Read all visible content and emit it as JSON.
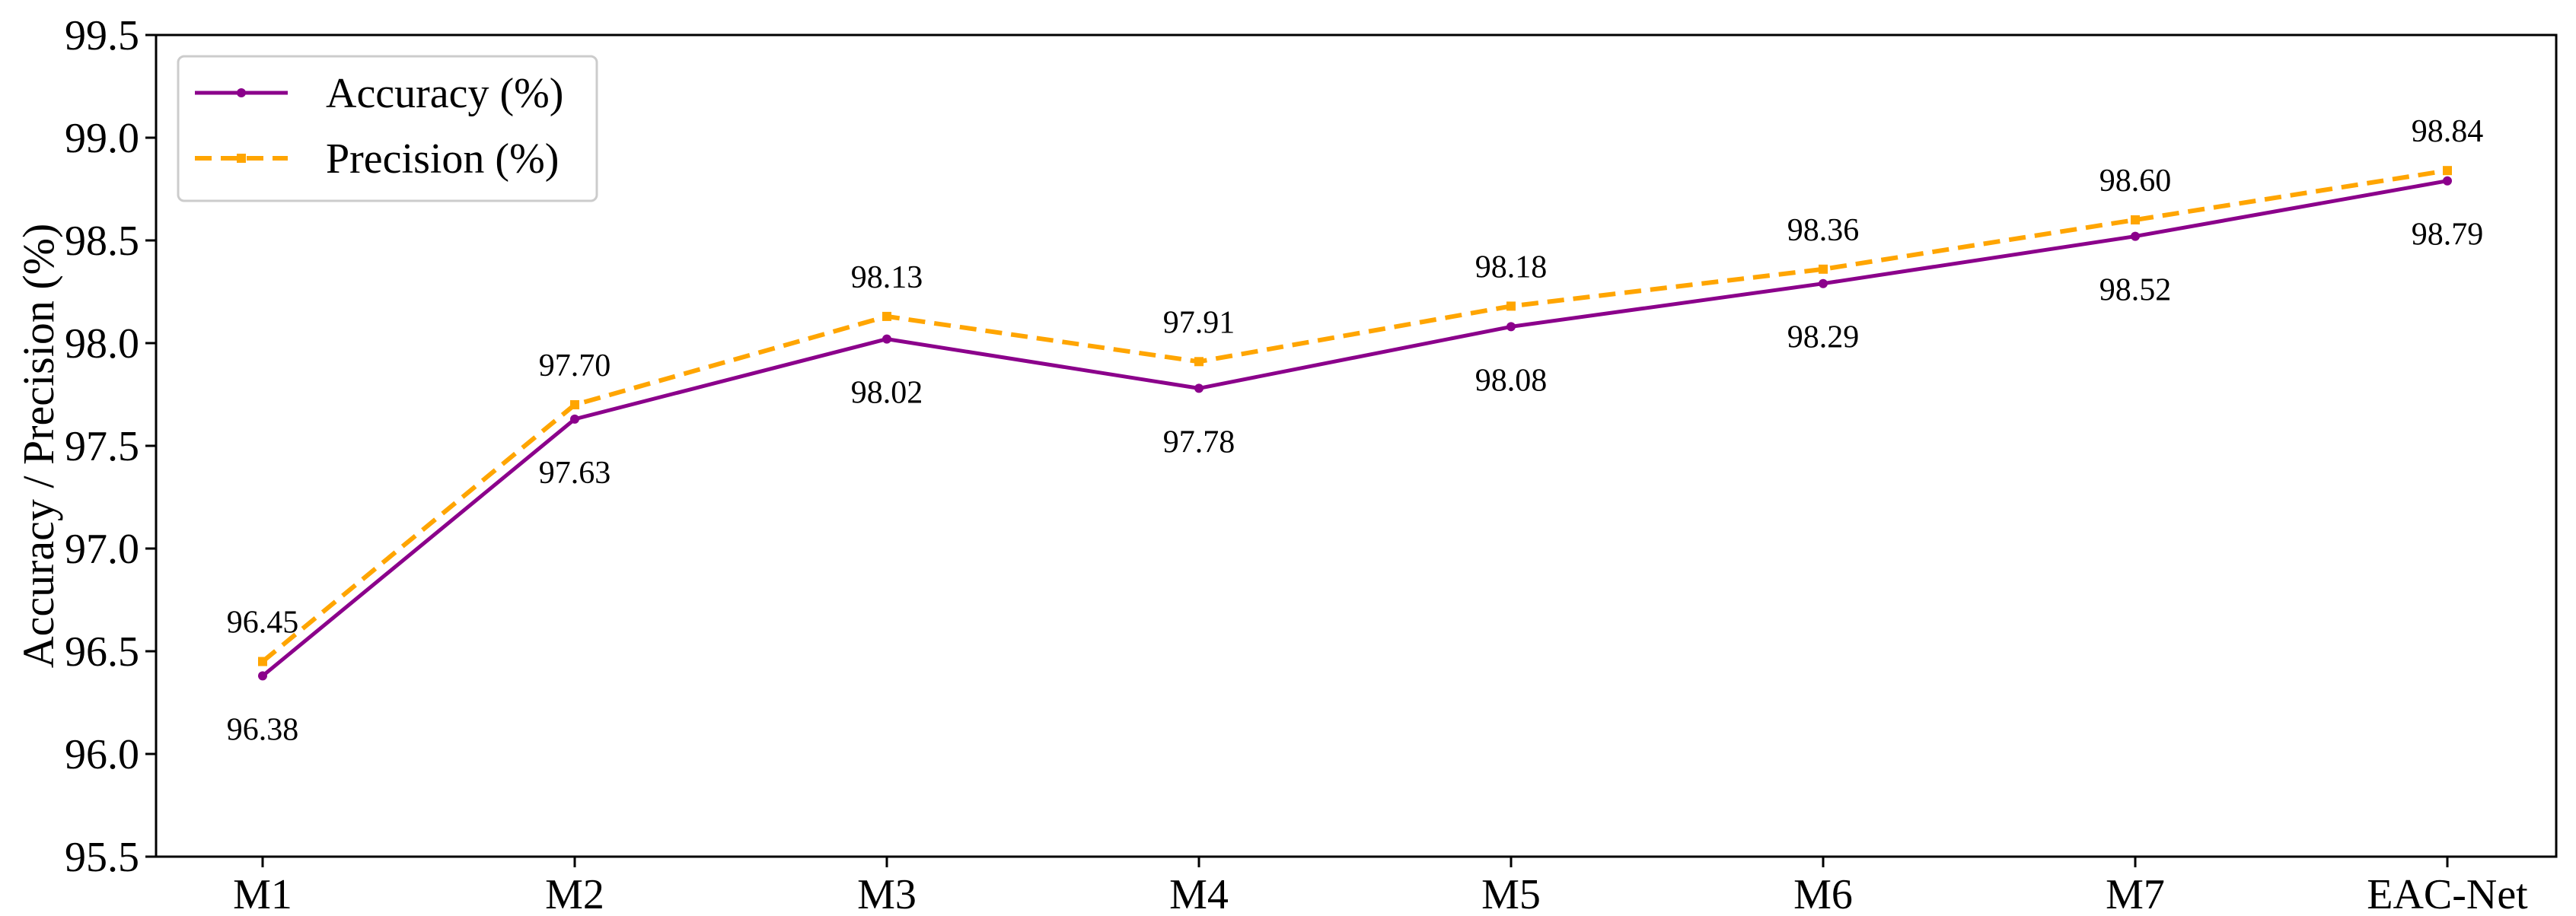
{
  "chart_data": {
    "type": "line",
    "categories": [
      "M1",
      "M2",
      "M3",
      "M4",
      "M5",
      "M6",
      "M7",
      "EAC-Net"
    ],
    "series": [
      {
        "name": "Accuracy (%)",
        "values": [
          96.38,
          97.63,
          98.02,
          97.78,
          98.08,
          98.29,
          98.52,
          98.79
        ],
        "color": "#8B008B",
        "line_style": "solid",
        "data_labels": [
          "96.38",
          "97.63",
          "98.02",
          "97.78",
          "98.08",
          "98.29",
          "98.52",
          "98.79"
        ]
      },
      {
        "name": "Precision (%)",
        "values": [
          96.45,
          97.7,
          98.13,
          97.91,
          98.18,
          98.36,
          98.6,
          98.84
        ],
        "color": "#FFA500",
        "line_style": "dashed",
        "data_labels": [
          "96.45",
          "97.70",
          "98.13",
          "97.91",
          "98.18",
          "98.36",
          "98.60",
          "98.84"
        ]
      }
    ],
    "title": "",
    "xlabel": "",
    "ylabel": "Accuracy / Precision (%)",
    "ylim": [
      95.5,
      99.5
    ],
    "yticks": [
      "95.5",
      "96.0",
      "96.5",
      "97.0",
      "97.5",
      "98.0",
      "98.5",
      "99.0",
      "99.5"
    ],
    "grid": false,
    "legend_position": "top-left"
  }
}
